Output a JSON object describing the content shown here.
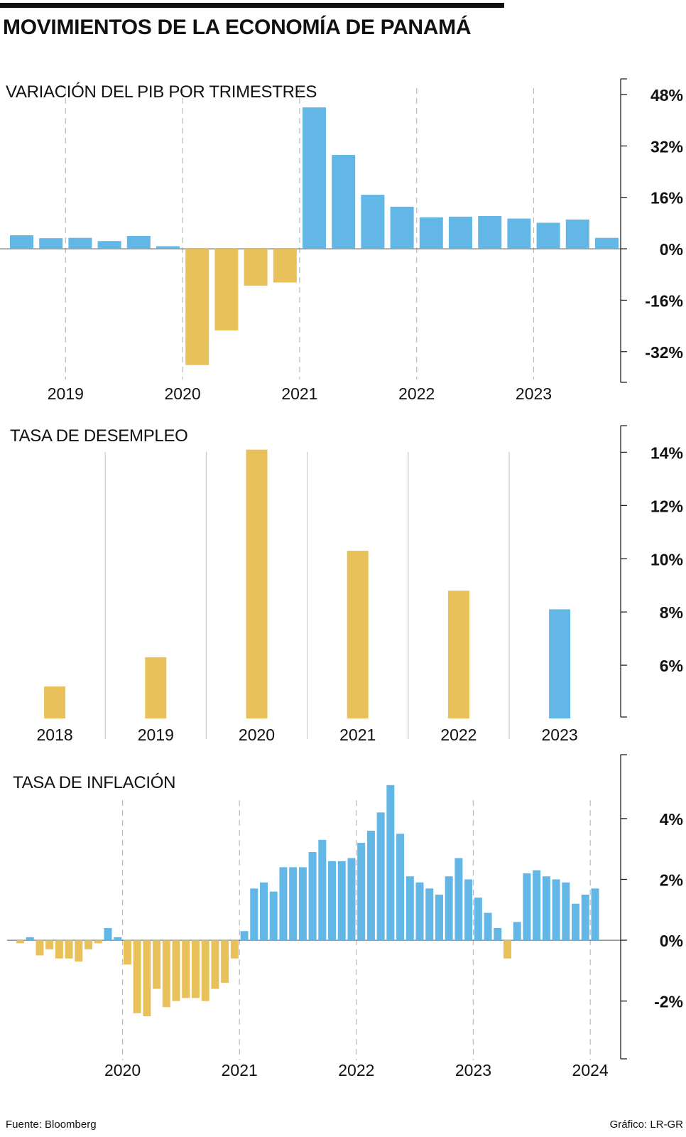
{
  "title": "MOVIMIENTOS DE LA ECONOMÍA DE PANAMÁ",
  "colors": {
    "positive": "#62b7e6",
    "negative": "#e8c15b",
    "axis": "#222222",
    "grid": "#bbbbbb"
  },
  "footer": {
    "source": "Fuente: Bloomberg",
    "credit": "Gráfico: LR-GR"
  },
  "chart_data": [
    {
      "type": "bar",
      "title": "VARIACIÓN DEL PIB POR TRIMESTRES",
      "ylim": [
        -42,
        50
      ],
      "yticks": [
        48,
        32,
        16,
        0,
        -16,
        -32
      ],
      "ytick_labels": [
        "48%",
        "32%",
        "16%",
        "0%",
        "-16%",
        "-32%"
      ],
      "x_labels": [
        "2019",
        "2020",
        "2021",
        "2022",
        "2023"
      ],
      "x_label_positions": [
        1.5,
        5.5,
        9.5,
        13.5,
        17.5
      ],
      "year_dividers": [
        1.5,
        5.5,
        9.5,
        13.5,
        17.5
      ],
      "values": [
        4.2,
        3.3,
        3.4,
        2.4,
        4.0,
        0.8,
        -36.2,
        -25.4,
        -11.5,
        -10.5,
        44.0,
        29.2,
        16.8,
        13.1,
        9.8,
        10.0,
        10.2,
        9.4,
        8.1,
        9.1,
        3.4
      ],
      "colors": [
        "positive",
        "positive",
        "positive",
        "positive",
        "positive",
        "positive",
        "negative",
        "negative",
        "negative",
        "negative",
        "positive",
        "positive",
        "positive",
        "positive",
        "positive",
        "positive",
        "positive",
        "positive",
        "positive",
        "positive",
        "positive"
      ]
    },
    {
      "type": "bar",
      "title": "TASA DE DESEMPLEO",
      "ylim": [
        4.0,
        15.0
      ],
      "yticks": [
        14,
        12,
        10,
        8,
        6
      ],
      "ytick_labels": [
        "14%",
        "12%",
        "10%",
        "8%",
        "6%"
      ],
      "categories": [
        "2018",
        "2019",
        "2020",
        "2021",
        "2022",
        "2023"
      ],
      "values": [
        5.2,
        6.3,
        14.1,
        10.3,
        8.8,
        8.1
      ],
      "colors": [
        "negative",
        "negative",
        "negative",
        "negative",
        "negative",
        "positive"
      ]
    },
    {
      "type": "bar",
      "title": "TASA DE INFLACIÓN",
      "ylim": [
        -3.9,
        6.1
      ],
      "yticks": [
        4,
        2,
        0,
        -2
      ],
      "ytick_labels": [
        "4%",
        "2%",
        "0%",
        "-2%"
      ],
      "x_labels": [
        "2020",
        "2021",
        "2022",
        "2023",
        "2024"
      ],
      "x_label_positions": [
        10.5,
        22.5,
        34.5,
        46.5,
        58.5
      ],
      "year_dividers": [
        10.5,
        22.5,
        34.5,
        46.5,
        58.5
      ],
      "values": [
        -0.1,
        0.1,
        -0.5,
        -0.3,
        -0.6,
        -0.6,
        -0.7,
        -0.3,
        -0.1,
        0.4,
        0.1,
        -0.8,
        -2.4,
        -2.5,
        -1.6,
        -2.2,
        -2.0,
        -1.9,
        -1.9,
        -2.0,
        -1.6,
        -1.4,
        -0.6,
        0.3,
        1.7,
        1.9,
        1.6,
        2.4,
        2.4,
        2.4,
        2.9,
        3.3,
        2.6,
        2.6,
        2.7,
        3.2,
        3.6,
        4.2,
        5.1,
        3.5,
        2.1,
        1.9,
        1.7,
        1.5,
        2.1,
        2.7,
        2.0,
        1.4,
        0.9,
        0.4,
        -0.6,
        0.6,
        2.2,
        2.3,
        2.1,
        2.0,
        1.9,
        1.2,
        1.5,
        1.7
      ],
      "colors": [
        "negative",
        "positive",
        "negative",
        "negative",
        "negative",
        "negative",
        "negative",
        "negative",
        "negative",
        "positive",
        "positive",
        "negative",
        "negative",
        "negative",
        "negative",
        "negative",
        "negative",
        "negative",
        "negative",
        "negative",
        "negative",
        "negative",
        "negative",
        "positive",
        "positive",
        "positive",
        "positive",
        "positive",
        "positive",
        "positive",
        "positive",
        "positive",
        "positive",
        "positive",
        "positive",
        "positive",
        "positive",
        "positive",
        "positive",
        "positive",
        "positive",
        "positive",
        "positive",
        "positive",
        "positive",
        "positive",
        "positive",
        "positive",
        "positive",
        "positive",
        "negative",
        "positive",
        "positive",
        "positive",
        "positive",
        "positive",
        "positive",
        "positive",
        "positive",
        "positive"
      ]
    }
  ]
}
